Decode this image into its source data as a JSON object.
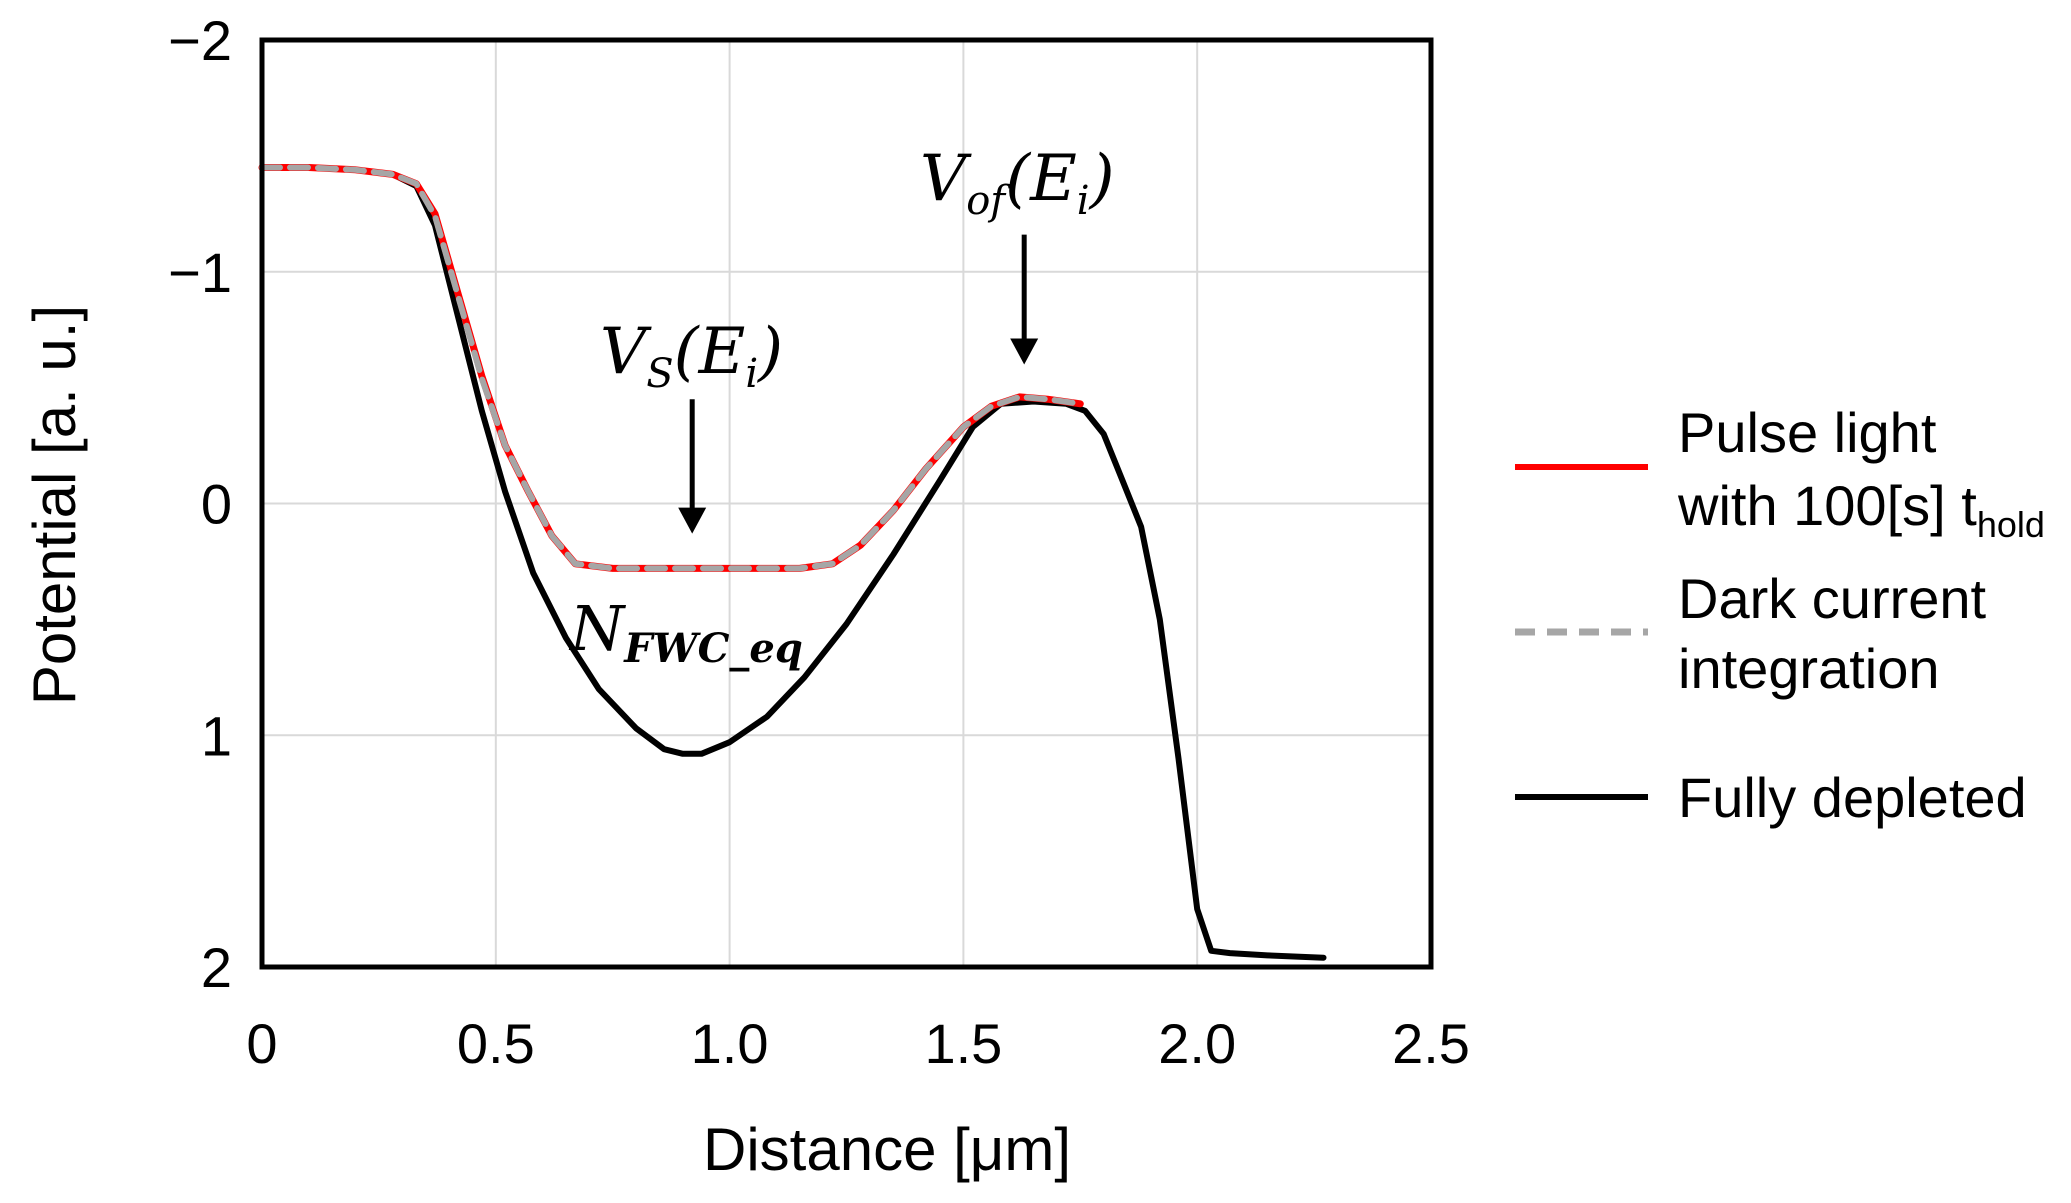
{
  "chart_data": {
    "type": "line",
    "title": "",
    "xlabel": "Distance [μm]",
    "ylabel": "Potential [a. u.]",
    "xlim": [
      0,
      2.5
    ],
    "ylim": [
      -2,
      2
    ],
    "y_inverted": true,
    "grid": true,
    "x_ticks": [
      0,
      0.5,
      1.0,
      1.5,
      2.0,
      2.5
    ],
    "x_tick_labels": [
      "0",
      "0.5",
      "1.0",
      "1.5",
      "2.0",
      "2.5"
    ],
    "y_ticks": [
      -2,
      -1,
      0,
      1,
      2
    ],
    "y_tick_labels": [
      "−2",
      "−1",
      "0",
      "1",
      "2"
    ],
    "legend_position": "right",
    "legend": [
      {
        "line1": "Pulse light",
        "line2_main": "with 100[s] t",
        "line2_sub": "hold",
        "color": "#ff0000",
        "dash": "solid"
      },
      {
        "line1": "Dark current",
        "line2_main": "integration",
        "line2_sub": "",
        "color": "#a6a6a6",
        "dash": "dashed"
      },
      {
        "line1": "Fully depleted",
        "line2_main": "",
        "line2_sub": "",
        "color": "#000000",
        "dash": "solid"
      }
    ],
    "series": [
      {
        "name": "Pulse light with 100[s] t_hold",
        "color": "#ff0000",
        "x": [
          0,
          0.1,
          0.2,
          0.28,
          0.33,
          0.37,
          0.42,
          0.47,
          0.52,
          0.57,
          0.62,
          0.67,
          0.75,
          0.85,
          0.95,
          1.05,
          1.15,
          1.22,
          1.28,
          1.35,
          1.42,
          1.5,
          1.56,
          1.62,
          1.68,
          1.75
        ],
        "y": [
          -1.45,
          -1.45,
          -1.44,
          -1.42,
          -1.38,
          -1.25,
          -0.9,
          -0.55,
          -0.25,
          -0.05,
          0.14,
          0.26,
          0.28,
          0.28,
          0.28,
          0.28,
          0.28,
          0.26,
          0.18,
          0.03,
          -0.15,
          -0.33,
          -0.42,
          -0.46,
          -0.45,
          -0.43
        ]
      },
      {
        "name": "Dark current integration",
        "color": "#a6a6a6",
        "x": [
          0,
          0.1,
          0.2,
          0.28,
          0.33,
          0.37,
          0.42,
          0.47,
          0.52,
          0.57,
          0.62,
          0.67,
          0.75,
          0.85,
          0.95,
          1.05,
          1.15,
          1.22,
          1.28,
          1.35,
          1.42,
          1.5,
          1.56,
          1.62,
          1.68,
          1.75
        ],
        "y": [
          -1.45,
          -1.45,
          -1.44,
          -1.42,
          -1.38,
          -1.24,
          -0.89,
          -0.54,
          -0.25,
          -0.05,
          0.14,
          0.26,
          0.28,
          0.28,
          0.28,
          0.28,
          0.28,
          0.26,
          0.18,
          0.03,
          -0.15,
          -0.33,
          -0.42,
          -0.46,
          -0.45,
          -0.43
        ]
      },
      {
        "name": "Fully depleted",
        "color": "#000000",
        "x": [
          0,
          0.1,
          0.2,
          0.28,
          0.33,
          0.37,
          0.42,
          0.47,
          0.52,
          0.58,
          0.65,
          0.72,
          0.8,
          0.86,
          0.9,
          0.94,
          1.0,
          1.08,
          1.16,
          1.25,
          1.35,
          1.45,
          1.52,
          1.58,
          1.65,
          1.72,
          1.76,
          1.8,
          1.84,
          1.88,
          1.92,
          1.96,
          2.0,
          2.03,
          2.07,
          2.15,
          2.27
        ],
        "y": [
          -1.45,
          -1.45,
          -1.44,
          -1.42,
          -1.37,
          -1.2,
          -0.8,
          -0.4,
          -0.05,
          0.3,
          0.58,
          0.8,
          0.97,
          1.06,
          1.08,
          1.08,
          1.03,
          0.92,
          0.75,
          0.52,
          0.22,
          -0.1,
          -0.33,
          -0.43,
          -0.44,
          -0.43,
          -0.4,
          -0.3,
          -0.1,
          0.1,
          0.5,
          1.1,
          1.75,
          1.93,
          1.94,
          1.95,
          1.96
        ]
      }
    ],
    "annotations": [
      {
        "id": "vs",
        "main": "V",
        "sub": "S",
        "rest": "(E",
        "rest_sub": "i",
        "close": ")",
        "arrow_x": 0.92,
        "arrow_from_y": -0.45,
        "arrow_to_y": 0.13
      },
      {
        "id": "vof",
        "main": "V",
        "sub": "of",
        "rest": "(E",
        "rest_sub": "i",
        "close": ")",
        "arrow_x": 1.63,
        "arrow_from_y": -1.16,
        "arrow_to_y": -0.6
      },
      {
        "id": "nfwc",
        "main": "N",
        "sub": "FWC_eq"
      }
    ]
  }
}
